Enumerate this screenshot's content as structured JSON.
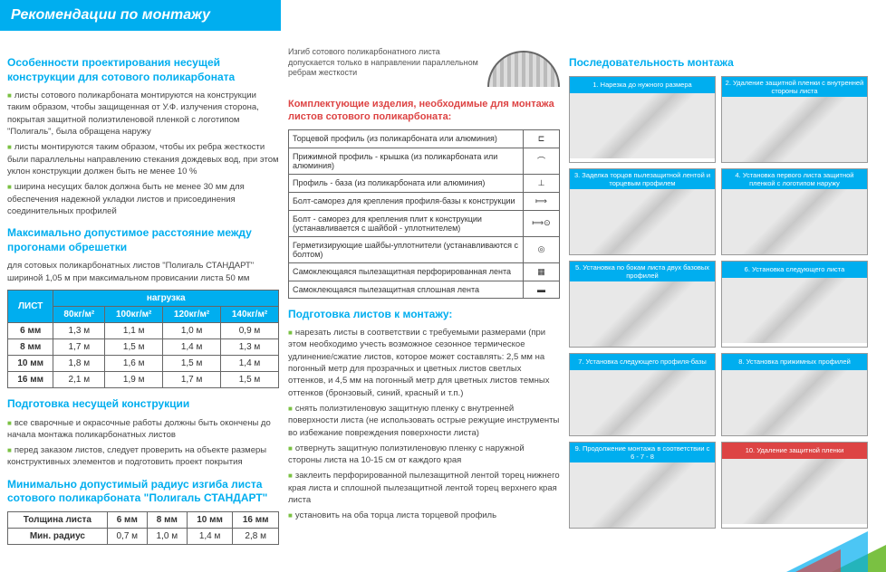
{
  "banner": "Рекомендации по монтажу",
  "s1": {
    "title": "Особенности проектирования несущей конструкции для сотового поликарбоната",
    "b1": "листы сотового поликарбоната монтируются на конструкции таким образом, чтобы защищенная от У.Ф. излучения сторона, покрытая защитной полиэтиленовой пленкой с логотипом \"Полигаль\", была обращена наружу",
    "b2": "листы монтируются таким образом, чтобы их ребра жесткости были параллельны направлению стекания дождевых вод, при этом уклон конструкции должен быть не менее 10 %",
    "b3": "ширина несущих балок должна быть не менее 30 мм для обеспечения надежной укладки листов и присоединения соединительных профилей"
  },
  "s2": {
    "title": "Максимально допустимое расстояние между прогонами обрешетки",
    "sub": "для сотовых поликарбонатных листов \"Полигаль СТАНДАРТ\" шириной 1,05 м при максимальном провисании листа 50 мм",
    "h_list": "ЛИСТ",
    "h_load": "нагрузка",
    "cols": [
      "80кг/м²",
      "100кг/м²",
      "120кг/м²",
      "140кг/м²"
    ],
    "rows": [
      {
        "t": "6 мм",
        "v": [
          "1,3 м",
          "1,1 м",
          "1,0 м",
          "0,9 м"
        ]
      },
      {
        "t": "8 мм",
        "v": [
          "1,7 м",
          "1,5 м",
          "1,4 м",
          "1,3 м"
        ]
      },
      {
        "t": "10 мм",
        "v": [
          "1,8 м",
          "1,6 м",
          "1,5 м",
          "1,4 м"
        ]
      },
      {
        "t": "16 мм",
        "v": [
          "2,1 м",
          "1,9 м",
          "1,7 м",
          "1,5 м"
        ]
      }
    ]
  },
  "s3": {
    "title": "Подготовка несущей конструкции",
    "b1": "все сварочные и окрасочные работы должны быть окончены до начала монтажа поликарбонатных листов",
    "b2": "перед заказом листов, следует проверить на объекте размеры конструктивных элементов и подготовить проект покрытия"
  },
  "s4": {
    "title": "Минимально допустимый радиус изгиба листа сотового поликарбоната \"Полигаль СТАНДАРТ\"",
    "r1": "Толщина листа",
    "r2": "Мин. радиус",
    "cols": [
      "6 мм",
      "8 мм",
      "10 мм",
      "16 мм"
    ],
    "vals": [
      "0,7 м",
      "1,0 м",
      "1,4 м",
      "2,8 м"
    ]
  },
  "bend": "Изгиб сотового поликарбонатного листа допускается только в направлении параллельном ребрам жесткости",
  "comp": {
    "title": "Комплектующие изделия, необходимые для монтажа листов сотового поликарбоната:",
    "items": [
      "Торцевой профиль (из поликарбоната или алюминия)",
      "Прижимной профиль - крышка (из поликарбоната или алюминия)",
      "Профиль - база (из поликарбоната или алюминия)",
      "Болт-саморез для крепления профиля-базы к конструкции",
      "Болт - саморез для крепления плит к конструкции (устанавливается с шайбой - уплотнителем)",
      "Герметизирующие шайбы-уплотнители (устанавливаются с болтом)",
      "Самоклеющаяся пылезащитная перфорированная лента",
      "Самоклеющаяся пылезащитная сплошная лента"
    ]
  },
  "prep": {
    "title": "Подготовка листов к монтажу:",
    "b1": "нарезать листы в соответствии с требуемыми размерами (при этом необходимо учесть возможное сезонное термическое удлинение/сжатие листов, которое может составлять: 2,5 мм на погонный метр для прозрачных и цветных листов светлых оттенков, и 4,5 мм на погонный метр для цветных листов темных оттенков (бронзовый, синий, красный и т.п.)",
    "b2": "снять полиэтиленовую защитную пленку с внутренней поверхности листа (не использовать острые режущие инструменты во избежание повреждения поверхности листа)",
    "b3": "отвернуть защитную полиэтиленовую пленку с наружной стороны листа на 10-15 см от каждого края",
    "b4": "заклеить перфорированной пылезащитной лентой торец нижнего края листа и сплошной пылезащитной лентой торец верхнего края листа",
    "b5": "установить на оба торца листа торцевой профиль"
  },
  "seq": {
    "title": "Последовательность монтажа",
    "steps": [
      "1. Нарезка до нужного размера",
      "2. Удаление защитной пленки с внутренней стороны листа",
      "3. Заделка торцов пылезащитной лентой и торцевым профилем",
      "4. Установка первого листа защитной пленкой с логотипом наружу",
      "5. Установка по бокам листа двух базовых профилей",
      "6. Установка следующего листа",
      "7. Установка следующего профиля-базы",
      "8. Установка прижимных профилей",
      "9. Продолжение монтажа в соответствии с 6 - 7 - 8",
      "10. Удаление защитной пленки"
    ]
  }
}
